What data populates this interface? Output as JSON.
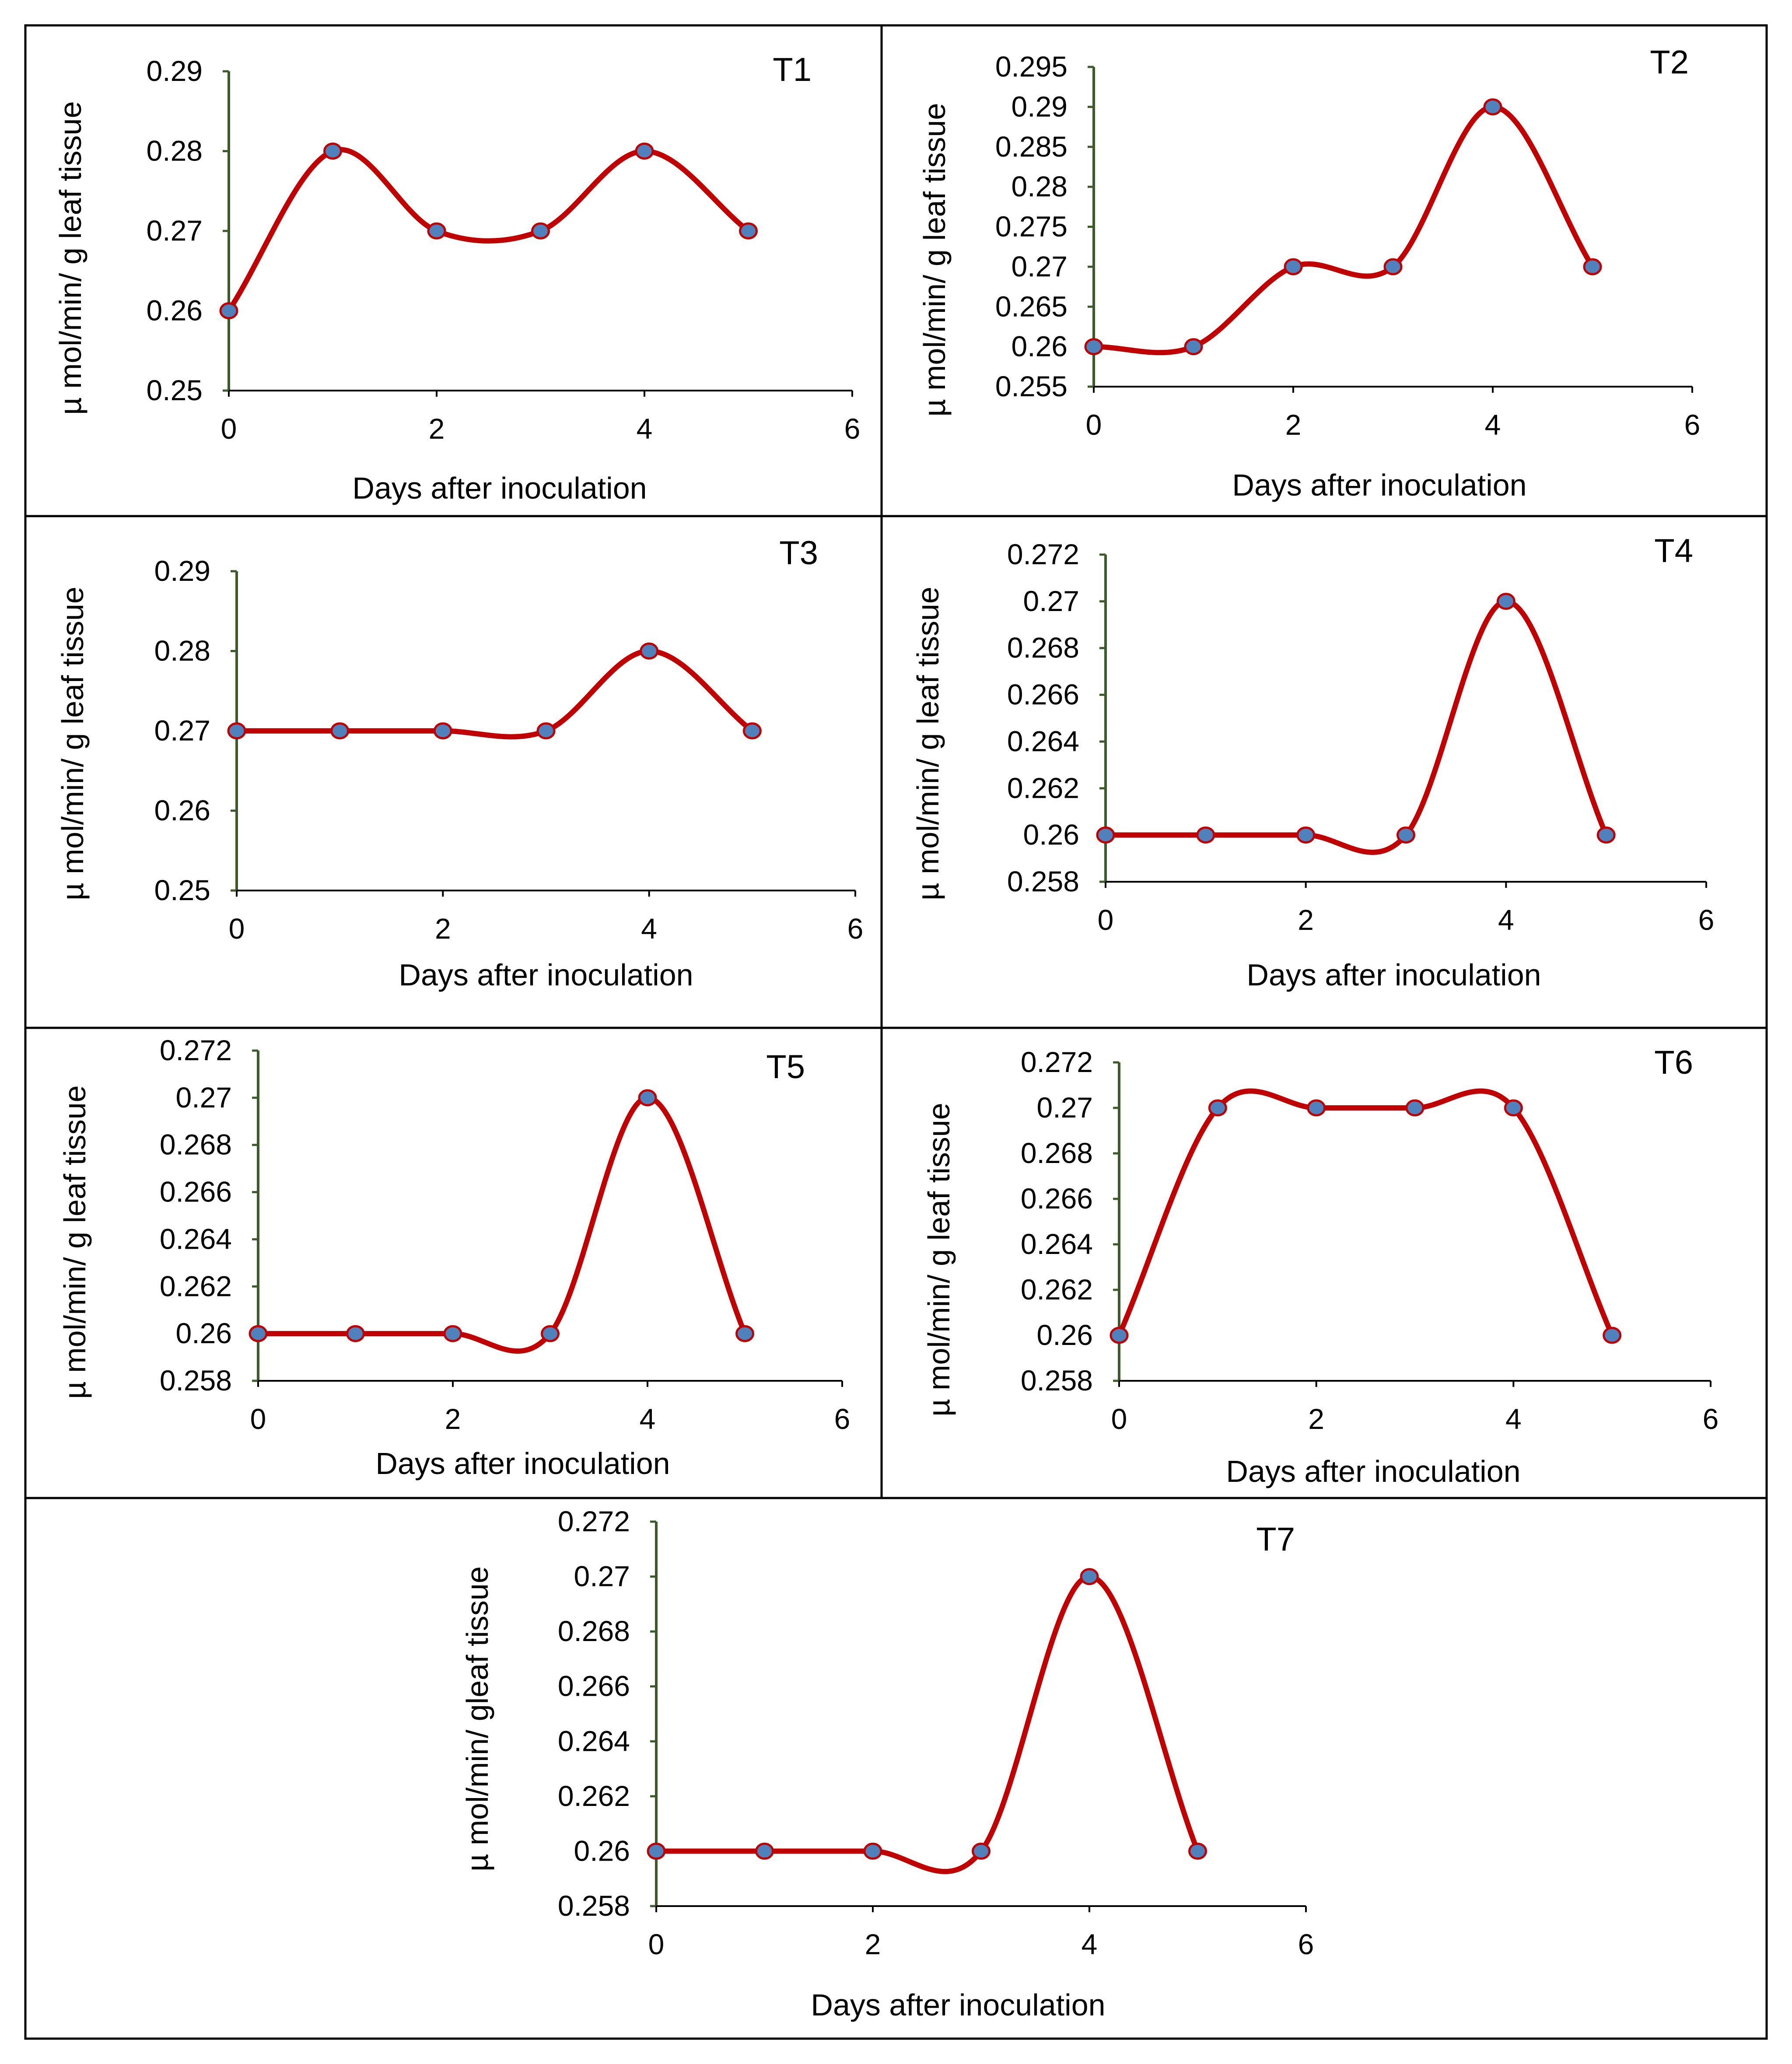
{
  "figure": {
    "background": "#ffffff",
    "line_color": "#c00000",
    "marker_color": "#4f81bd",
    "axis_color": "#3d5a2a"
  },
  "chart_data": [
    {
      "id": "T1",
      "type": "line",
      "title": "T1",
      "xlabel": "Days after inoculation",
      "ylabel": "µ mol/min/ g leaf tissue",
      "x": [
        0,
        1,
        2,
        3,
        4,
        5
      ],
      "values": [
        0.26,
        0.28,
        0.27,
        0.27,
        0.28,
        0.27
      ],
      "xlim": [
        0,
        6
      ],
      "ylim": [
        0.25,
        0.29
      ],
      "xticks": [
        "0",
        "2",
        "4",
        "6"
      ],
      "yticks": [
        "0.25",
        "0.26",
        "0.27",
        "0.28",
        "0.29"
      ],
      "grid": false
    },
    {
      "id": "T2",
      "type": "line",
      "title": "T2",
      "xlabel": "Days after inoculation",
      "ylabel": "µ mol/min/ g leaf tissue",
      "x": [
        0,
        1,
        2,
        3,
        4,
        5
      ],
      "values": [
        0.26,
        0.26,
        0.27,
        0.27,
        0.29,
        0.27
      ],
      "xlim": [
        0,
        6
      ],
      "ylim": [
        0.255,
        0.295
      ],
      "xticks": [
        "0",
        "2",
        "4",
        "6"
      ],
      "yticks": [
        "0.255",
        "0.26",
        "0.265",
        "0.27",
        "0.275",
        "0.28",
        "0.285",
        "0.29",
        "0.295"
      ],
      "grid": false
    },
    {
      "id": "T3",
      "type": "line",
      "title": "T3",
      "xlabel": "Days after inoculation",
      "ylabel": "µ mol/min/ g leaf tissue",
      "x": [
        0,
        1,
        2,
        3,
        4,
        5
      ],
      "values": [
        0.27,
        0.27,
        0.27,
        0.27,
        0.28,
        0.27
      ],
      "xlim": [
        0,
        6
      ],
      "ylim": [
        0.25,
        0.29
      ],
      "xticks": [
        "0",
        "2",
        "4",
        "6"
      ],
      "yticks": [
        "0.25",
        "0.26",
        "0.27",
        "0.28",
        "0.29"
      ],
      "grid": false
    },
    {
      "id": "T4",
      "type": "line",
      "title": "T4",
      "xlabel": "Days after inoculation",
      "ylabel": "µ mol/min/ g leaf tissue",
      "x": [
        0,
        1,
        2,
        3,
        4,
        5
      ],
      "values": [
        0.26,
        0.26,
        0.26,
        0.26,
        0.27,
        0.26
      ],
      "xlim": [
        0,
        6
      ],
      "ylim": [
        0.258,
        0.272
      ],
      "xticks": [
        "0",
        "2",
        "4",
        "6"
      ],
      "yticks": [
        "0.258",
        "0.26",
        "0.262",
        "0.264",
        "0.266",
        "0.268",
        "0.27",
        "0.272"
      ],
      "grid": false
    },
    {
      "id": "T5",
      "type": "line",
      "title": "T5",
      "xlabel": "Days after inoculation",
      "ylabel": "µ mol/min/ g leaf tissue",
      "x": [
        0,
        1,
        2,
        3,
        4,
        5
      ],
      "values": [
        0.26,
        0.26,
        0.26,
        0.26,
        0.27,
        0.26
      ],
      "xlim": [
        0,
        6
      ],
      "ylim": [
        0.258,
        0.272
      ],
      "xticks": [
        "0",
        "2",
        "4",
        "6"
      ],
      "yticks": [
        "0.258",
        "0.26",
        "0.262",
        "0.264",
        "0.266",
        "0.268",
        "0.27",
        "0.272"
      ],
      "grid": false
    },
    {
      "id": "T6",
      "type": "line",
      "title": "T6",
      "xlabel": "Days after inoculation",
      "ylabel": "µ mol/min/ g leaf tissue",
      "x": [
        0,
        1,
        2,
        3,
        4,
        5
      ],
      "values": [
        0.26,
        0.27,
        0.27,
        0.27,
        0.27,
        0.26
      ],
      "xlim": [
        0,
        6
      ],
      "ylim": [
        0.258,
        0.272
      ],
      "xticks": [
        "0",
        "2",
        "4",
        "6"
      ],
      "yticks": [
        "0.258",
        "0.26",
        "0.262",
        "0.264",
        "0.266",
        "0.268",
        "0.27",
        "0.272"
      ],
      "grid": false
    },
    {
      "id": "T7",
      "type": "line",
      "title": "T7",
      "xlabel": "Days after inoculation",
      "ylabel": "µ mol/min/ gleaf tissue",
      "x": [
        0,
        1,
        2,
        3,
        4,
        5
      ],
      "values": [
        0.26,
        0.26,
        0.26,
        0.26,
        0.27,
        0.26
      ],
      "xlim": [
        0,
        6
      ],
      "ylim": [
        0.258,
        0.272
      ],
      "xticks": [
        "0",
        "2",
        "4",
        "6"
      ],
      "yticks": [
        "0.258",
        "0.26",
        "0.262",
        "0.264",
        "0.266",
        "0.268",
        "0.27",
        "0.272"
      ],
      "grid": false
    }
  ]
}
